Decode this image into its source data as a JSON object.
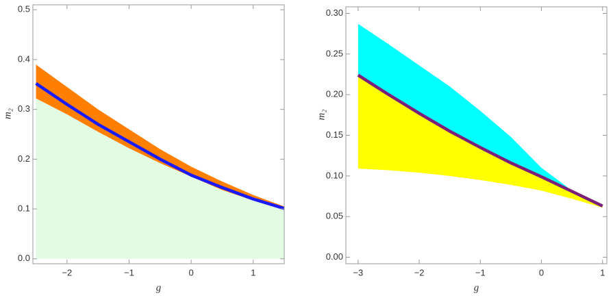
{
  "chart_data": [
    {
      "type": "area",
      "xlabel": "g",
      "ylabel": "m₂",
      "x": [
        -2.5,
        -2,
        -1.5,
        -1,
        -0.5,
        0,
        0.5,
        1,
        1.5
      ],
      "xlim": [
        -2.55,
        1.5
      ],
      "ylim": [
        -0.01,
        0.51
      ],
      "xticks": [
        {
          "value": -2,
          "label": "−2"
        },
        {
          "value": -1,
          "label": "−1"
        },
        0,
        1
      ],
      "yticks": [
        {
          "value": 0,
          "label": "0.0"
        },
        0.1,
        0.2,
        0.3,
        0.4,
        0.5
      ],
      "series": [
        {
          "color": "#e2fbe2",
          "fill": "axis",
          "values": [
            0.322,
            0.29,
            0.255,
            0.222,
            0.192,
            0.165,
            0.138,
            0.117,
            0.098
          ]
        },
        {
          "color": "#ff7f00",
          "fill": 0,
          "values": [
            0.39,
            0.345,
            0.3,
            0.26,
            0.22,
            0.185,
            0.155,
            0.128,
            0.105
          ]
        },
        {
          "color": "#1a1aff",
          "fill": "none",
          "values": [
            0.352,
            0.31,
            0.27,
            0.235,
            0.2,
            0.168,
            0.143,
            0.12,
            0.101
          ]
        }
      ]
    },
    {
      "type": "area",
      "xlabel": "g",
      "ylabel": "m₂",
      "x": [
        -3,
        -2.5,
        -2,
        -1.5,
        -1,
        -0.5,
        0,
        0.5,
        1
      ],
      "xlim": [
        -3.2,
        1.07
      ],
      "ylim": [
        -0.008,
        0.308
      ],
      "xticks": [
        {
          "value": -3,
          "label": "−3"
        },
        {
          "value": -2,
          "label": "−2"
        },
        {
          "value": -1,
          "label": "−1"
        },
        0,
        1
      ],
      "yticks": [
        {
          "value": 0,
          "label": "0.00"
        },
        0.05,
        {
          "value": 0.1,
          "label": "0.10"
        },
        0.15,
        {
          "value": 0.2,
          "label": "0.20"
        },
        0.25,
        {
          "value": 0.3,
          "label": "0.30"
        }
      ],
      "series": [
        {
          "color": "#00ffff",
          "fill": 2,
          "values": [
            0.287,
            0.262,
            0.236,
            0.21,
            0.18,
            0.148,
            0.11,
            0.082,
            0.063
          ]
        },
        {
          "color": "#ffff00",
          "fill": 2,
          "values": [
            0.109,
            0.107,
            0.104,
            0.1,
            0.095,
            0.089,
            0.082,
            0.072,
            0.061
          ]
        },
        {
          "color": "#7a1f7a",
          "fill": "none",
          "values": [
            0.224,
            0.2,
            0.177,
            0.155,
            0.135,
            0.116,
            0.099,
            0.081,
            0.063
          ]
        }
      ]
    }
  ]
}
